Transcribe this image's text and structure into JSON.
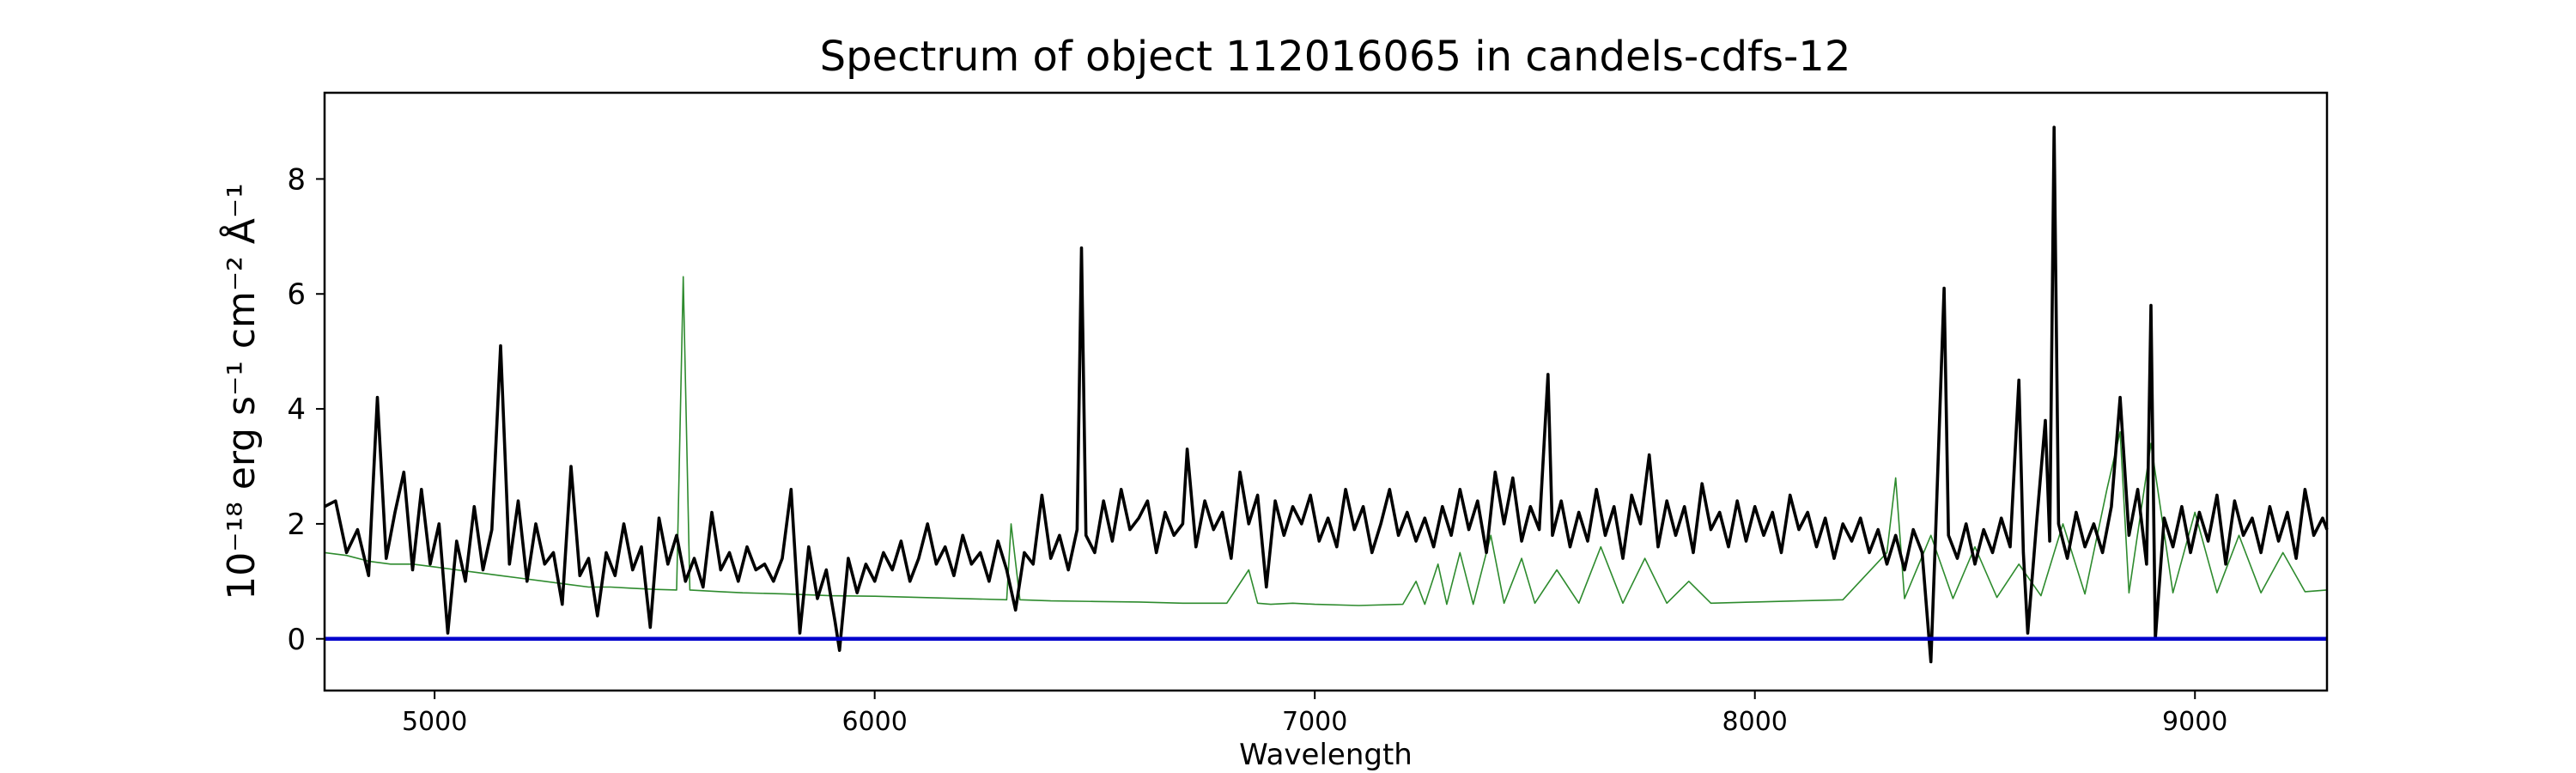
{
  "chart_data": {
    "type": "line",
    "title": "Spectrum of object 112016065 in candels-cdfs-12",
    "xlabel": "Wavelength",
    "ylabel": "10⁻¹⁸ erg s⁻¹ cm⁻² Å⁻¹",
    "xlim": [
      4750,
      9300
    ],
    "ylim": [
      -0.9,
      9.5
    ],
    "xticks": [
      5000,
      6000,
      7000,
      8000,
      9000
    ],
    "yticks": [
      0,
      2,
      4,
      6,
      8
    ],
    "grid": false,
    "legend": "none",
    "colors": {
      "flux": "#000000",
      "noise": "#2e8b2e",
      "zero": "#0000cc"
    },
    "series": [
      {
        "role": "flux",
        "points": [
          [
            4750,
            2.3
          ],
          [
            4775,
            2.4
          ],
          [
            4800,
            1.5
          ],
          [
            4825,
            1.9
          ],
          [
            4850,
            1.1
          ],
          [
            4870,
            4.2
          ],
          [
            4890,
            1.4
          ],
          [
            4910,
            2.2
          ],
          [
            4930,
            2.9
          ],
          [
            4950,
            1.2
          ],
          [
            4970,
            2.6
          ],
          [
            4990,
            1.3
          ],
          [
            5010,
            2.0
          ],
          [
            5030,
            0.1
          ],
          [
            5050,
            1.7
          ],
          [
            5070,
            1.0
          ],
          [
            5090,
            2.3
          ],
          [
            5110,
            1.2
          ],
          [
            5130,
            1.9
          ],
          [
            5150,
            5.1
          ],
          [
            5170,
            1.3
          ],
          [
            5190,
            2.4
          ],
          [
            5210,
            1.0
          ],
          [
            5230,
            2.0
          ],
          [
            5250,
            1.3
          ],
          [
            5270,
            1.5
          ],
          [
            5290,
            0.6
          ],
          [
            5310,
            3.0
          ],
          [
            5330,
            1.1
          ],
          [
            5350,
            1.4
          ],
          [
            5370,
            0.4
          ],
          [
            5390,
            1.5
          ],
          [
            5410,
            1.1
          ],
          [
            5430,
            2.0
          ],
          [
            5450,
            1.2
          ],
          [
            5470,
            1.6
          ],
          [
            5490,
            0.2
          ],
          [
            5510,
            2.1
          ],
          [
            5530,
            1.3
          ],
          [
            5550,
            1.8
          ],
          [
            5570,
            1.0
          ],
          [
            5590,
            1.4
          ],
          [
            5610,
            0.9
          ],
          [
            5630,
            2.2
          ],
          [
            5650,
            1.2
          ],
          [
            5670,
            1.5
          ],
          [
            5690,
            1.0
          ],
          [
            5710,
            1.6
          ],
          [
            5730,
            1.2
          ],
          [
            5750,
            1.3
          ],
          [
            5770,
            1.0
          ],
          [
            5790,
            1.4
          ],
          [
            5810,
            2.6
          ],
          [
            5830,
            0.1
          ],
          [
            5850,
            1.6
          ],
          [
            5870,
            0.7
          ],
          [
            5890,
            1.2
          ],
          [
            5910,
            0.3
          ],
          [
            5920,
            -0.2
          ],
          [
            5940,
            1.4
          ],
          [
            5960,
            0.8
          ],
          [
            5980,
            1.3
          ],
          [
            6000,
            1.0
          ],
          [
            6020,
            1.5
          ],
          [
            6040,
            1.2
          ],
          [
            6060,
            1.7
          ],
          [
            6080,
            1.0
          ],
          [
            6100,
            1.4
          ],
          [
            6120,
            2.0
          ],
          [
            6140,
            1.3
          ],
          [
            6160,
            1.6
          ],
          [
            6180,
            1.1
          ],
          [
            6200,
            1.8
          ],
          [
            6220,
            1.3
          ],
          [
            6240,
            1.5
          ],
          [
            6260,
            1.0
          ],
          [
            6280,
            1.7
          ],
          [
            6300,
            1.2
          ],
          [
            6320,
            0.5
          ],
          [
            6340,
            1.5
          ],
          [
            6360,
            1.3
          ],
          [
            6380,
            2.5
          ],
          [
            6400,
            1.4
          ],
          [
            6420,
            1.8
          ],
          [
            6440,
            1.2
          ],
          [
            6460,
            1.9
          ],
          [
            6470,
            6.8
          ],
          [
            6480,
            1.8
          ],
          [
            6500,
            1.5
          ],
          [
            6520,
            2.4
          ],
          [
            6540,
            1.7
          ],
          [
            6560,
            2.6
          ],
          [
            6580,
            1.9
          ],
          [
            6600,
            2.1
          ],
          [
            6620,
            2.4
          ],
          [
            6640,
            1.5
          ],
          [
            6660,
            2.2
          ],
          [
            6680,
            1.8
          ],
          [
            6700,
            2.0
          ],
          [
            6710,
            3.3
          ],
          [
            6730,
            1.6
          ],
          [
            6750,
            2.4
          ],
          [
            6770,
            1.9
          ],
          [
            6790,
            2.2
          ],
          [
            6810,
            1.4
          ],
          [
            6830,
            2.9
          ],
          [
            6850,
            2.0
          ],
          [
            6870,
            2.5
          ],
          [
            6890,
            0.9
          ],
          [
            6910,
            2.4
          ],
          [
            6930,
            1.8
          ],
          [
            6950,
            2.3
          ],
          [
            6970,
            2.0
          ],
          [
            6990,
            2.5
          ],
          [
            7010,
            1.7
          ],
          [
            7030,
            2.1
          ],
          [
            7050,
            1.6
          ],
          [
            7070,
            2.6
          ],
          [
            7090,
            1.9
          ],
          [
            7110,
            2.3
          ],
          [
            7130,
            1.5
          ],
          [
            7150,
            2.0
          ],
          [
            7170,
            2.6
          ],
          [
            7190,
            1.8
          ],
          [
            7210,
            2.2
          ],
          [
            7230,
            1.7
          ],
          [
            7250,
            2.1
          ],
          [
            7270,
            1.6
          ],
          [
            7290,
            2.3
          ],
          [
            7310,
            1.8
          ],
          [
            7330,
            2.6
          ],
          [
            7350,
            1.9
          ],
          [
            7370,
            2.4
          ],
          [
            7390,
            1.5
          ],
          [
            7410,
            2.9
          ],
          [
            7430,
            2.0
          ],
          [
            7450,
            2.8
          ],
          [
            7470,
            1.7
          ],
          [
            7490,
            2.3
          ],
          [
            7510,
            1.9
          ],
          [
            7530,
            4.6
          ],
          [
            7540,
            1.8
          ],
          [
            7560,
            2.4
          ],
          [
            7580,
            1.6
          ],
          [
            7600,
            2.2
          ],
          [
            7620,
            1.7
          ],
          [
            7640,
            2.6
          ],
          [
            7660,
            1.8
          ],
          [
            7680,
            2.3
          ],
          [
            7700,
            1.4
          ],
          [
            7720,
            2.5
          ],
          [
            7740,
            2.0
          ],
          [
            7760,
            3.2
          ],
          [
            7780,
            1.6
          ],
          [
            7800,
            2.4
          ],
          [
            7820,
            1.8
          ],
          [
            7840,
            2.3
          ],
          [
            7860,
            1.5
          ],
          [
            7880,
            2.7
          ],
          [
            7900,
            1.9
          ],
          [
            7920,
            2.2
          ],
          [
            7940,
            1.6
          ],
          [
            7960,
            2.4
          ],
          [
            7980,
            1.7
          ],
          [
            8000,
            2.3
          ],
          [
            8020,
            1.8
          ],
          [
            8040,
            2.2
          ],
          [
            8060,
            1.5
          ],
          [
            8080,
            2.5
          ],
          [
            8100,
            1.9
          ],
          [
            8120,
            2.2
          ],
          [
            8140,
            1.6
          ],
          [
            8160,
            2.1
          ],
          [
            8180,
            1.4
          ],
          [
            8200,
            2.0
          ],
          [
            8220,
            1.7
          ],
          [
            8240,
            2.1
          ],
          [
            8260,
            1.5
          ],
          [
            8280,
            1.9
          ],
          [
            8300,
            1.3
          ],
          [
            8320,
            1.8
          ],
          [
            8340,
            1.2
          ],
          [
            8360,
            1.9
          ],
          [
            8380,
            1.5
          ],
          [
            8400,
            -0.4
          ],
          [
            8410,
            1.7
          ],
          [
            8430,
            6.1
          ],
          [
            8440,
            1.8
          ],
          [
            8460,
            1.4
          ],
          [
            8480,
            2.0
          ],
          [
            8500,
            1.3
          ],
          [
            8520,
            1.9
          ],
          [
            8540,
            1.5
          ],
          [
            8560,
            2.1
          ],
          [
            8580,
            1.6
          ],
          [
            8600,
            4.5
          ],
          [
            8610,
            1.5
          ],
          [
            8620,
            0.1
          ],
          [
            8640,
            2.0
          ],
          [
            8660,
            3.8
          ],
          [
            8670,
            1.7
          ],
          [
            8680,
            8.9
          ],
          [
            8690,
            2.0
          ],
          [
            8710,
            1.4
          ],
          [
            8730,
            2.2
          ],
          [
            8750,
            1.6
          ],
          [
            8770,
            2.0
          ],
          [
            8790,
            1.5
          ],
          [
            8810,
            2.3
          ],
          [
            8830,
            4.2
          ],
          [
            8850,
            1.8
          ],
          [
            8870,
            2.6
          ],
          [
            8890,
            1.3
          ],
          [
            8900,
            5.8
          ],
          [
            8910,
            0.0
          ],
          [
            8930,
            2.1
          ],
          [
            8950,
            1.6
          ],
          [
            8970,
            2.3
          ],
          [
            8990,
            1.5
          ],
          [
            9010,
            2.2
          ],
          [
            9030,
            1.7
          ],
          [
            9050,
            2.5
          ],
          [
            9070,
            1.3
          ],
          [
            9090,
            2.4
          ],
          [
            9110,
            1.8
          ],
          [
            9130,
            2.1
          ],
          [
            9150,
            1.5
          ],
          [
            9170,
            2.3
          ],
          [
            9190,
            1.7
          ],
          [
            9210,
            2.2
          ],
          [
            9230,
            1.4
          ],
          [
            9250,
            2.6
          ],
          [
            9270,
            1.8
          ],
          [
            9290,
            2.1
          ],
          [
            9300,
            1.9
          ]
        ]
      },
      {
        "role": "noise",
        "points": [
          [
            4750,
            1.5
          ],
          [
            4800,
            1.45
          ],
          [
            4850,
            1.35
          ],
          [
            4900,
            1.3
          ],
          [
            4950,
            1.3
          ],
          [
            5000,
            1.25
          ],
          [
            5050,
            1.2
          ],
          [
            5100,
            1.15
          ],
          [
            5150,
            1.1
          ],
          [
            5200,
            1.05
          ],
          [
            5250,
            1.0
          ],
          [
            5300,
            0.95
          ],
          [
            5350,
            0.9
          ],
          [
            5400,
            0.9
          ],
          [
            5450,
            0.88
          ],
          [
            5500,
            0.86
          ],
          [
            5550,
            0.85
          ],
          [
            5565,
            6.3
          ],
          [
            5580,
            0.85
          ],
          [
            5650,
            0.82
          ],
          [
            5700,
            0.8
          ],
          [
            5800,
            0.78
          ],
          [
            5900,
            0.75
          ],
          [
            6000,
            0.74
          ],
          [
            6100,
            0.72
          ],
          [
            6200,
            0.7
          ],
          [
            6300,
            0.68
          ],
          [
            6310,
            2.0
          ],
          [
            6330,
            0.68
          ],
          [
            6400,
            0.66
          ],
          [
            6500,
            0.65
          ],
          [
            6600,
            0.64
          ],
          [
            6700,
            0.62
          ],
          [
            6800,
            0.62
          ],
          [
            6850,
            1.2
          ],
          [
            6870,
            0.62
          ],
          [
            6900,
            0.6
          ],
          [
            6950,
            0.62
          ],
          [
            7000,
            0.6
          ],
          [
            7100,
            0.58
          ],
          [
            7200,
            0.6
          ],
          [
            7230,
            1.0
          ],
          [
            7250,
            0.6
          ],
          [
            7280,
            1.3
          ],
          [
            7300,
            0.6
          ],
          [
            7330,
            1.5
          ],
          [
            7360,
            0.6
          ],
          [
            7400,
            1.8
          ],
          [
            7430,
            0.62
          ],
          [
            7470,
            1.4
          ],
          [
            7500,
            0.62
          ],
          [
            7550,
            1.2
          ],
          [
            7600,
            0.62
          ],
          [
            7650,
            1.6
          ],
          [
            7700,
            0.62
          ],
          [
            7750,
            1.4
          ],
          [
            7800,
            0.62
          ],
          [
            7850,
            1.0
          ],
          [
            7900,
            0.62
          ],
          [
            8000,
            0.64
          ],
          [
            8100,
            0.66
          ],
          [
            8200,
            0.68
          ],
          [
            8300,
            1.5
          ],
          [
            8320,
            2.8
          ],
          [
            8340,
            0.7
          ],
          [
            8400,
            1.8
          ],
          [
            8450,
            0.7
          ],
          [
            8500,
            1.6
          ],
          [
            8550,
            0.72
          ],
          [
            8600,
            1.3
          ],
          [
            8650,
            0.75
          ],
          [
            8700,
            2.0
          ],
          [
            8750,
            0.78
          ],
          [
            8800,
            2.6
          ],
          [
            8830,
            3.6
          ],
          [
            8850,
            0.8
          ],
          [
            8900,
            3.4
          ],
          [
            8950,
            0.8
          ],
          [
            9000,
            2.2
          ],
          [
            9050,
            0.8
          ],
          [
            9100,
            1.8
          ],
          [
            9150,
            0.8
          ],
          [
            9200,
            1.5
          ],
          [
            9250,
            0.82
          ],
          [
            9300,
            0.85
          ]
        ]
      },
      {
        "role": "zero",
        "points": [
          [
            4750,
            0
          ],
          [
            9300,
            0
          ]
        ]
      }
    ]
  }
}
